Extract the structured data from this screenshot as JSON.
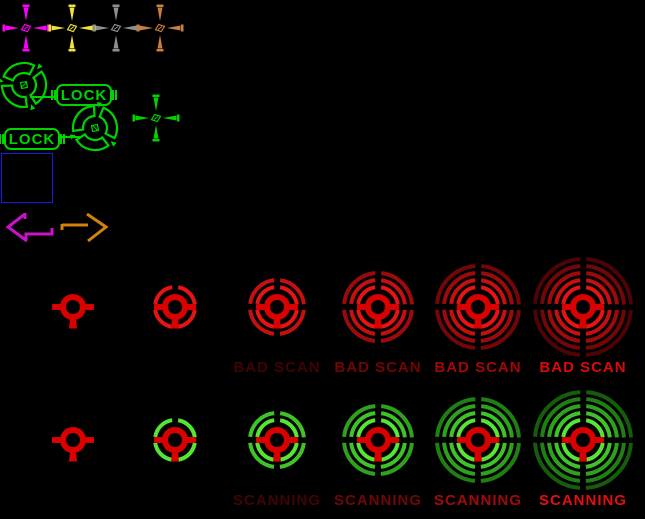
{
  "colors": {
    "background": "#000000",
    "magenta": "#ff00ff",
    "yellow": "#f0e23c",
    "gray": "#8f8f8f",
    "tan": "#c8803c",
    "green": "#00d400",
    "blue": "#1a1ae6",
    "arrow_magenta": "#cc10cc",
    "arrow_orange": "#d4820a",
    "target_red": "#d90000"
  },
  "icons": [
    {
      "name": "crosshair-magenta-icon",
      "color": "magenta"
    },
    {
      "name": "crosshair-yellow-icon",
      "color": "yellow"
    },
    {
      "name": "crosshair-gray-icon",
      "color": "gray"
    },
    {
      "name": "crosshair-tan-icon",
      "color": "tan"
    },
    {
      "name": "crosshair-green-icon",
      "color": "green"
    },
    {
      "name": "lock-reticle-icon",
      "color": "green"
    },
    {
      "name": "arrow-left-icon",
      "color": "arrow_magenta"
    },
    {
      "name": "arrow-right-icon",
      "color": "arrow_orange"
    },
    {
      "name": "target-wheel-icon",
      "color": "target_red"
    },
    {
      "name": "selection-square-icon",
      "color": "blue"
    }
  ],
  "lock": {
    "label": "LOCK"
  },
  "targets": {
    "rows": [
      {
        "name": "bad-scan",
        "label": "BAD SCAN",
        "rings": [
          0,
          1,
          2,
          3,
          4,
          5
        ],
        "palette": [
          "#e81414",
          "#c51010",
          "#9c0b0b",
          "#730707",
          "#4e0404"
        ],
        "label_colors": [
          "#400303",
          "#720505",
          "#a30707",
          "#dd0808"
        ]
      },
      {
        "name": "scanning",
        "label": "SCANNING",
        "rings": [
          0,
          1,
          2,
          3,
          4,
          5
        ],
        "palette": [
          "#55e634",
          "#3fc427",
          "#2da31d",
          "#1f7f13",
          "#165c0c"
        ],
        "label_colors": [
          "#400404",
          "#700707",
          "#a20a0a",
          "#e01010"
        ]
      }
    ]
  }
}
